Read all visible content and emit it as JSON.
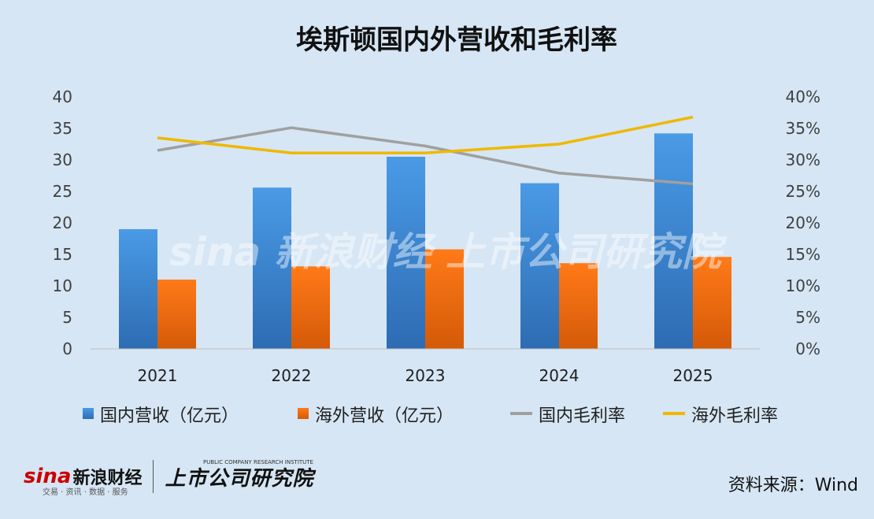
{
  "chart_data": {
    "type": "bar",
    "title": "埃斯顿国内外营收和毛利率",
    "categories": [
      "2021",
      "2022",
      "2023",
      "2024",
      "2025"
    ],
    "series": [
      {
        "name": "国内营收（亿元）",
        "type": "bar",
        "axis": "left",
        "color": "#3c82d0",
        "values": [
          19.0,
          25.6,
          30.5,
          26.3,
          34.2
        ]
      },
      {
        "name": "海外营收（亿元）",
        "type": "bar",
        "axis": "left",
        "color": "#ee6a10",
        "values": [
          11.0,
          13.1,
          15.8,
          13.6,
          14.6
        ]
      },
      {
        "name": "国内毛利率",
        "type": "line",
        "axis": "right",
        "color": "#a0a0a0",
        "values": [
          0.315,
          0.351,
          0.322,
          0.279,
          0.262
        ]
      },
      {
        "name": "海外毛利率",
        "type": "line",
        "axis": "right",
        "color": "#f0b800",
        "values": [
          0.335,
          0.311,
          0.311,
          0.325,
          0.368
        ]
      }
    ],
    "y_left": {
      "min": 0,
      "max": 40,
      "ticks": [
        "0",
        "5",
        "10",
        "15",
        "20",
        "25",
        "30",
        "35",
        "40"
      ]
    },
    "y_right": {
      "min": 0,
      "max": 0.4,
      "ticks": [
        "0%",
        "5%",
        "10%",
        "15%",
        "20%",
        "25%",
        "30%",
        "35%",
        "40%"
      ]
    },
    "grid": false,
    "legend_position": "bottom"
  },
  "branding": {
    "sina_logo": "sina",
    "sina_cn": "新浪财经",
    "sina_sub": "交易 · 资讯 · 数据 · 服务",
    "institute_cn": "上市公司研究院",
    "institute_en": "PUBLIC COMPANY RESEARCH INSTITUTE",
    "watermark": "sina 新浪财经 上市公司研究院"
  },
  "source_note": "资料来源：Wind"
}
